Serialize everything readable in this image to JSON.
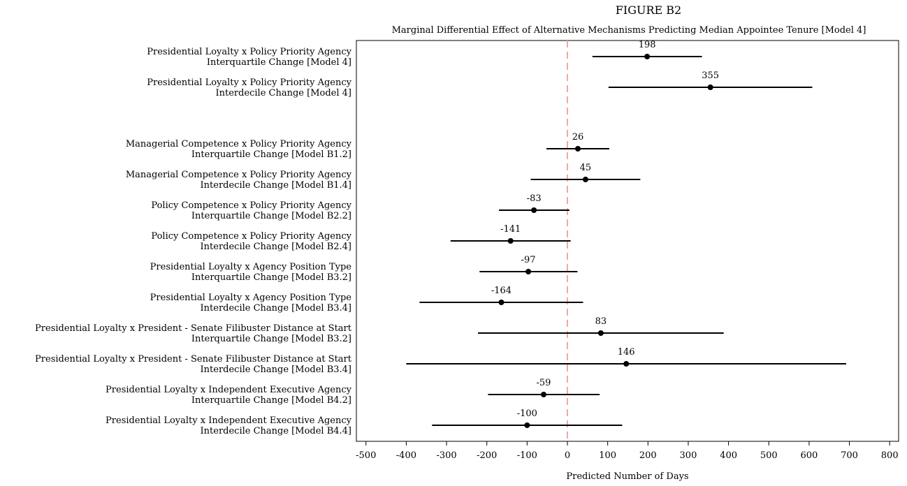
{
  "figure_label": "FIGURE B2",
  "chart_data": {
    "type": "scatter",
    "subtitle": "Marginal Differential Effect of Alternative Mechanisms Predicting Median Appointee Tenure [Model 4]",
    "xlabel": "Predicted Number of Days",
    "ylabel": "",
    "xlim": [
      -520,
      820
    ],
    "xticks": [
      -500,
      -400,
      -300,
      -200,
      -100,
      0,
      100,
      200,
      300,
      400,
      500,
      600,
      700,
      800
    ],
    "reference_line": 0,
    "reference_color": "#f4a6a6",
    "grid": false,
    "legend": "none",
    "series": [
      {
        "label": [
          "Presidential Loyalty x Policy Priority Agency",
          "Interquartile Change [Model 4]"
        ],
        "value": 198,
        "low": 62,
        "high": 334,
        "value_label": "198"
      },
      {
        "label": [
          "Presidential Loyalty x Policy Priority Agency",
          "Interdecile Change [Model 4]"
        ],
        "value": 355,
        "low": 102,
        "high": 608,
        "value_label": "355"
      },
      {
        "label": [
          "Managerial Competence x Policy Priority Agency",
          "Interquartile Change [Model B1.2]"
        ],
        "value": 26,
        "low": -52,
        "high": 104,
        "value_label": "26"
      },
      {
        "label": [
          "Managerial Competence x Policy Priority Agency",
          "Interdecile Change [Model B1.4]"
        ],
        "value": 45,
        "low": -91,
        "high": 181,
        "value_label": "45"
      },
      {
        "label": [
          "Policy Competence x Policy Priority Agency",
          "Interquartile Change [Model B2.2]"
        ],
        "value": -83,
        "low": -170,
        "high": 5,
        "value_label": "-83"
      },
      {
        "label": [
          "Policy Competence x Policy Priority Agency",
          "Interdecile Change [Model B2.4]"
        ],
        "value": -141,
        "low": -290,
        "high": 8,
        "value_label": "-141"
      },
      {
        "label": [
          "Presidential Loyalty x Agency Position Type",
          "Interquartile Change [Model B3.2]"
        ],
        "value": -97,
        "low": -218,
        "high": 25,
        "value_label": "-97"
      },
      {
        "label": [
          "Presidential Loyalty x Agency Position Type",
          "Interdecile Change [Model B3.4]"
        ],
        "value": -164,
        "low": -367,
        "high": 39,
        "value_label": "-164"
      },
      {
        "label": [
          "Presidential Loyalty x President - Senate Filibuster Distance at Start",
          "Interquartile Change [Model B3.2]"
        ],
        "value": 83,
        "low": -222,
        "high": 388,
        "value_label": "83"
      },
      {
        "label": [
          "Presidential Loyalty x President - Senate Filibuster Distance at Start",
          "Interdecile Change [Model B3.4]"
        ],
        "value": 146,
        "low": -400,
        "high": 692,
        "value_label": "146"
      },
      {
        "label": [
          "Presidential Loyalty x Independent Executive Agency",
          "Interquartile Change [Model B4.2]"
        ],
        "value": -59,
        "low": -197,
        "high": 80,
        "value_label": "-59"
      },
      {
        "label": [
          "Presidential Loyalty x Independent Executive Agency",
          "Interdecile Change [Model B4.4]"
        ],
        "value": -100,
        "low": -336,
        "high": 136,
        "value_label": "-100"
      }
    ]
  }
}
